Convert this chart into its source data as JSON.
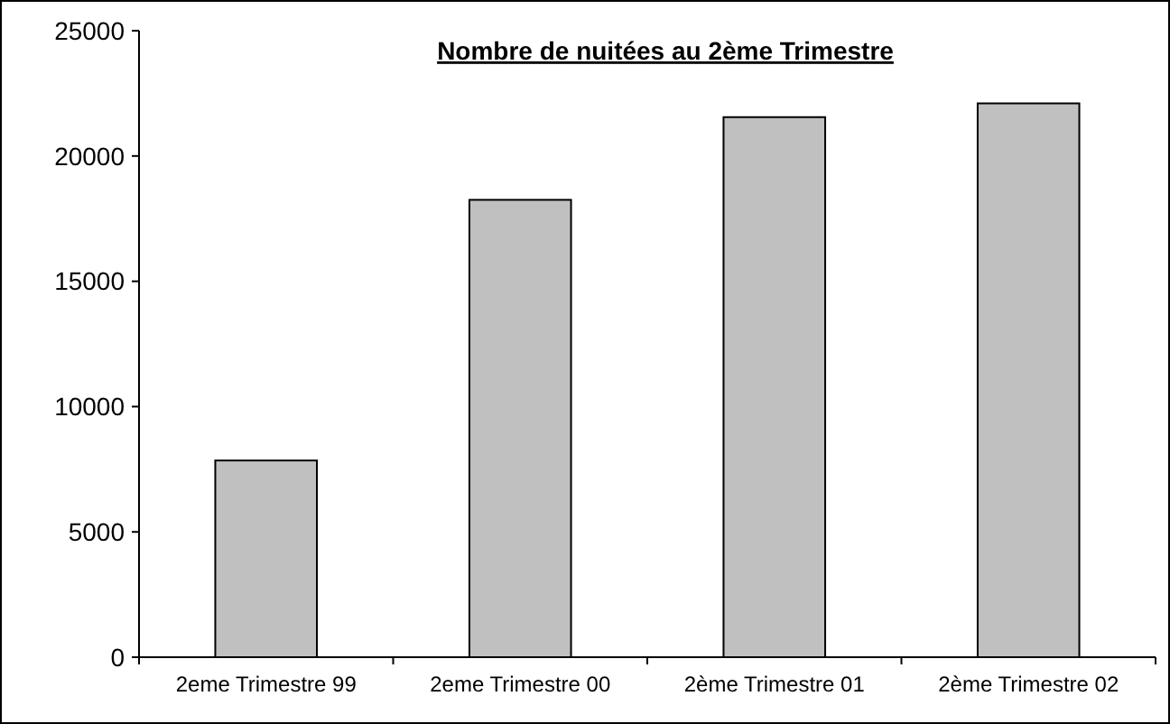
{
  "chart_data": {
    "type": "bar",
    "title": "Nombre de nuitées au 2ème Trimestre",
    "categories": [
      "2eme Trimestre 99",
      "2eme Trimestre 00",
      "2ème Trimestre 01",
      "2ème Trimestre 02"
    ],
    "values": [
      7850,
      18250,
      21550,
      22100
    ],
    "color": "#c0c0c0",
    "ylim": [
      0,
      25000
    ],
    "yticks": [
      0,
      5000,
      10000,
      15000,
      20000,
      25000
    ],
    "grid": false
  }
}
